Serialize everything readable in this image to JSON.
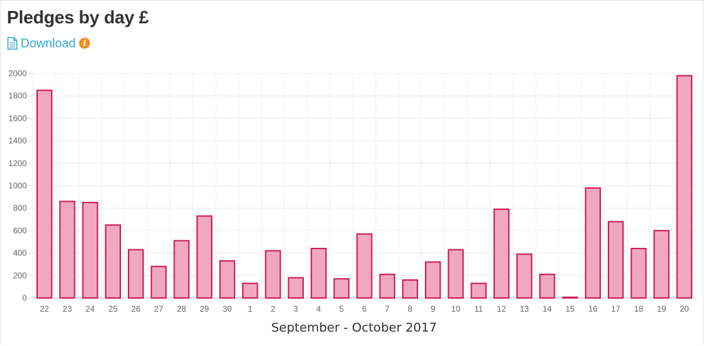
{
  "header": {
    "title": "Pledges by day £",
    "download_label": "Download"
  },
  "icons": {
    "download": "file-text-icon",
    "info": "info-icon"
  },
  "colors": {
    "bar_fill": "#f0a8c0",
    "bar_stroke": "#cc1f5a",
    "link": "#3aa7d3",
    "info": "#f08c1f"
  },
  "chart_data": {
    "type": "bar",
    "title": "",
    "xlabel": "September - October 2017",
    "ylabel": "",
    "ylim": [
      0,
      2000
    ],
    "yticks": [
      0,
      200,
      400,
      600,
      800,
      1000,
      1200,
      1400,
      1600,
      1800,
      2000
    ],
    "grid": true,
    "categories": [
      "22",
      "23",
      "24",
      "25",
      "26",
      "27",
      "28",
      "29",
      "30",
      "1",
      "2",
      "3",
      "4",
      "5",
      "6",
      "7",
      "8",
      "9",
      "10",
      "11",
      "12",
      "13",
      "14",
      "15",
      "16",
      "17",
      "18",
      "19",
      "20"
    ],
    "values": [
      1850,
      860,
      850,
      650,
      430,
      280,
      510,
      730,
      330,
      130,
      420,
      180,
      440,
      170,
      570,
      210,
      160,
      320,
      430,
      130,
      790,
      390,
      210,
      5,
      980,
      680,
      440,
      600,
      1980
    ]
  }
}
